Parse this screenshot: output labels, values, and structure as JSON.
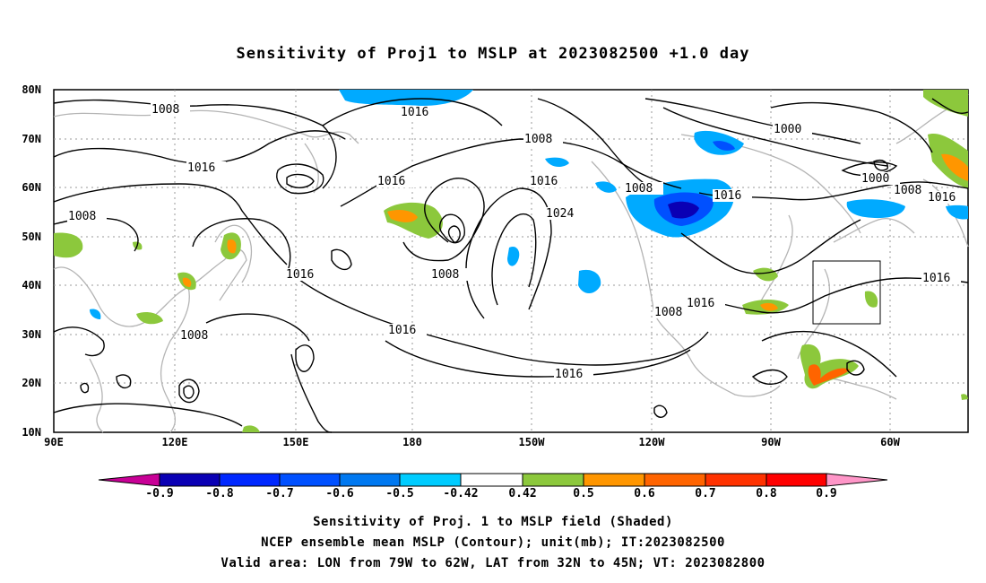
{
  "title": "Sensitivity of Proj1 to MSLP at 2023082500 +1.0 day",
  "lat_labels": [
    "80N",
    "70N",
    "60N",
    "50N",
    "40N",
    "30N",
    "20N",
    "10N"
  ],
  "lon_labels": [
    "90E",
    "120E",
    "150E",
    "180",
    "150W",
    "120W",
    "90W",
    "60W"
  ],
  "contour_labels": [
    "1008",
    "1016",
    "1008",
    "1016",
    "1016",
    "1008",
    "1016",
    "1024",
    "1008",
    "1000",
    "1000",
    "1008",
    "1016",
    "1008",
    "1016",
    "1008",
    "1016",
    "1016",
    "1016",
    "1008",
    "1016"
  ],
  "colorbar": {
    "labels": [
      "-0.9",
      "-0.8",
      "-0.7",
      "-0.6",
      "-0.5",
      "-0.42",
      "0.42",
      "0.5",
      "0.6",
      "0.7",
      "0.8",
      "0.9"
    ],
    "colors": [
      "#c80096",
      "#0a00b4",
      "#0028ff",
      "#0050ff",
      "#0078f0",
      "#00aaff",
      "#00ccff",
      "#ffffff",
      "#8cc83c",
      "#ff9600",
      "#ff6400",
      "#ff3200",
      "#ff0000",
      "#ff96c8"
    ]
  },
  "footer": {
    "line1": "Sensitivity of Proj. 1 to MSLP field (Shaded)",
    "line2": "NCEP ensemble mean MSLP (Contour); unit(mb); IT:2023082500",
    "line3": "Valid area: LON from 79W to 62W, LAT from 32N to 45N; VT: 2023082800"
  }
}
